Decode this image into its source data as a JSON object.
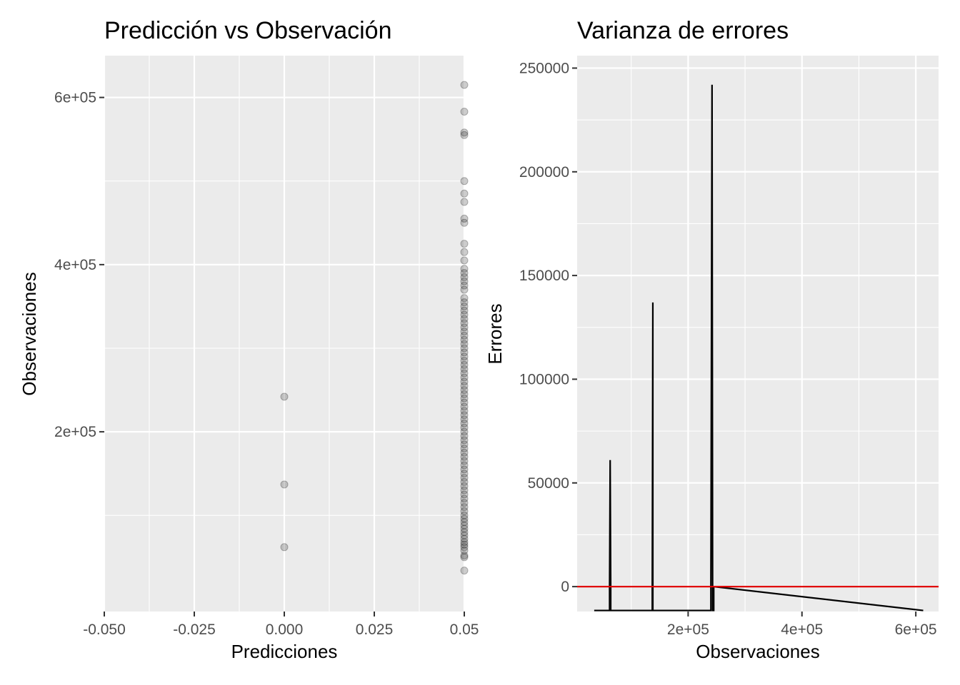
{
  "chart_data": [
    {
      "type": "scatter",
      "title": "Predicción vs Observación",
      "xlabel": "Predicciones",
      "ylabel": "Observaciones",
      "xlim": [
        -0.05,
        0.05
      ],
      "ylim": [
        -15000,
        650000
      ],
      "x_ticks": [
        -0.05,
        -0.025,
        0.0,
        0.025,
        0.05
      ],
      "x_tick_labels": [
        "-0.050",
        "-0.025",
        "0.000",
        "0.025",
        "0.05"
      ],
      "y_ticks": [
        200000,
        400000,
        600000
      ],
      "y_tick_labels": [
        "2e+05",
        "4e+05",
        "6e+05"
      ],
      "grid": true,
      "point_color": "#000000",
      "point_opacity": 0.2,
      "series": [
        {
          "points": [
            [
              0.0,
              62000
            ],
            [
              0.0,
              137000
            ],
            [
              0.0,
              242000
            ],
            [
              0.05,
              34000
            ],
            [
              0.05,
              50000
            ],
            [
              0.05,
              52000
            ],
            [
              0.05,
              58000
            ],
            [
              0.05,
              62000
            ],
            [
              0.05,
              65000
            ],
            [
              0.05,
              68000
            ],
            [
              0.05,
              72000
            ],
            [
              0.05,
              76000
            ],
            [
              0.05,
              80000
            ],
            [
              0.05,
              84000
            ],
            [
              0.05,
              88000
            ],
            [
              0.05,
              92000
            ],
            [
              0.05,
              96000
            ],
            [
              0.05,
              100000
            ],
            [
              0.05,
              105000
            ],
            [
              0.05,
              110000
            ],
            [
              0.05,
              115000
            ],
            [
              0.05,
              120000
            ],
            [
              0.05,
              125000
            ],
            [
              0.05,
              130000
            ],
            [
              0.05,
              135000
            ],
            [
              0.05,
              140000
            ],
            [
              0.05,
              145000
            ],
            [
              0.05,
              150000
            ],
            [
              0.05,
              155000
            ],
            [
              0.05,
              160000
            ],
            [
              0.05,
              165000
            ],
            [
              0.05,
              170000
            ],
            [
              0.05,
              175000
            ],
            [
              0.05,
              180000
            ],
            [
              0.05,
              185000
            ],
            [
              0.05,
              190000
            ],
            [
              0.05,
              195000
            ],
            [
              0.05,
              200000
            ],
            [
              0.05,
              205000
            ],
            [
              0.05,
              210000
            ],
            [
              0.05,
              215000
            ],
            [
              0.05,
              220000
            ],
            [
              0.05,
              225000
            ],
            [
              0.05,
              230000
            ],
            [
              0.05,
              235000
            ],
            [
              0.05,
              240000
            ],
            [
              0.05,
              245000
            ],
            [
              0.05,
              250000
            ],
            [
              0.05,
              255000
            ],
            [
              0.05,
              260000
            ],
            [
              0.05,
              265000
            ],
            [
              0.05,
              270000
            ],
            [
              0.05,
              275000
            ],
            [
              0.05,
              280000
            ],
            [
              0.05,
              285000
            ],
            [
              0.05,
              290000
            ],
            [
              0.05,
              295000
            ],
            [
              0.05,
              300000
            ],
            [
              0.05,
              305000
            ],
            [
              0.05,
              310000
            ],
            [
              0.05,
              315000
            ],
            [
              0.05,
              320000
            ],
            [
              0.05,
              325000
            ],
            [
              0.05,
              330000
            ],
            [
              0.05,
              335000
            ],
            [
              0.05,
              340000
            ],
            [
              0.05,
              345000
            ],
            [
              0.05,
              350000
            ],
            [
              0.05,
              355000
            ],
            [
              0.05,
              360000
            ],
            [
              0.05,
              370000
            ],
            [
              0.05,
              375000
            ],
            [
              0.05,
              380000
            ],
            [
              0.05,
              385000
            ],
            [
              0.05,
              390000
            ],
            [
              0.05,
              395000
            ],
            [
              0.05,
              405000
            ],
            [
              0.05,
              415000
            ],
            [
              0.05,
              425000
            ],
            [
              0.05,
              450000
            ],
            [
              0.05,
              455000
            ],
            [
              0.05,
              475000
            ],
            [
              0.05,
              485000
            ],
            [
              0.05,
              500000
            ],
            [
              0.05,
              555000
            ],
            [
              0.05,
              558000
            ],
            [
              0.05,
              583000
            ],
            [
              0.05,
              615000
            ]
          ]
        }
      ]
    },
    {
      "type": "line",
      "title": "Varianza de errores",
      "xlabel": "Observaciones",
      "ylabel": "Errores",
      "xlim": [
        5000,
        640000
      ],
      "ylim": [
        -12000,
        256000
      ],
      "x_ticks": [
        200000,
        400000,
        600000
      ],
      "x_tick_labels": [
        "2e+05",
        "4e+05",
        "6e+05"
      ],
      "y_ticks": [
        0,
        50000,
        100000,
        150000,
        200000,
        250000
      ],
      "y_tick_labels": [
        "0",
        "50000",
        "100000",
        "150000",
        "200000",
        "250000"
      ],
      "grid": true,
      "reference_line": {
        "y": 0,
        "color": "#e00000"
      },
      "line_color": "#000000",
      "series": [
        {
          "x": [
            35000,
            62000,
            62000,
            63000,
            64000,
            64000,
            137000,
            137000,
            138000,
            138000,
            240000,
            240000,
            242000,
            243000,
            243000,
            245000,
            245000,
            613000
          ],
          "y": [
            -11500,
            -11500,
            0,
            61000,
            0,
            -11500,
            -11500,
            0,
            137000,
            -11500,
            -11500,
            0,
            242000,
            0,
            -11500,
            -11500,
            0,
            -11500
          ]
        }
      ]
    }
  ]
}
